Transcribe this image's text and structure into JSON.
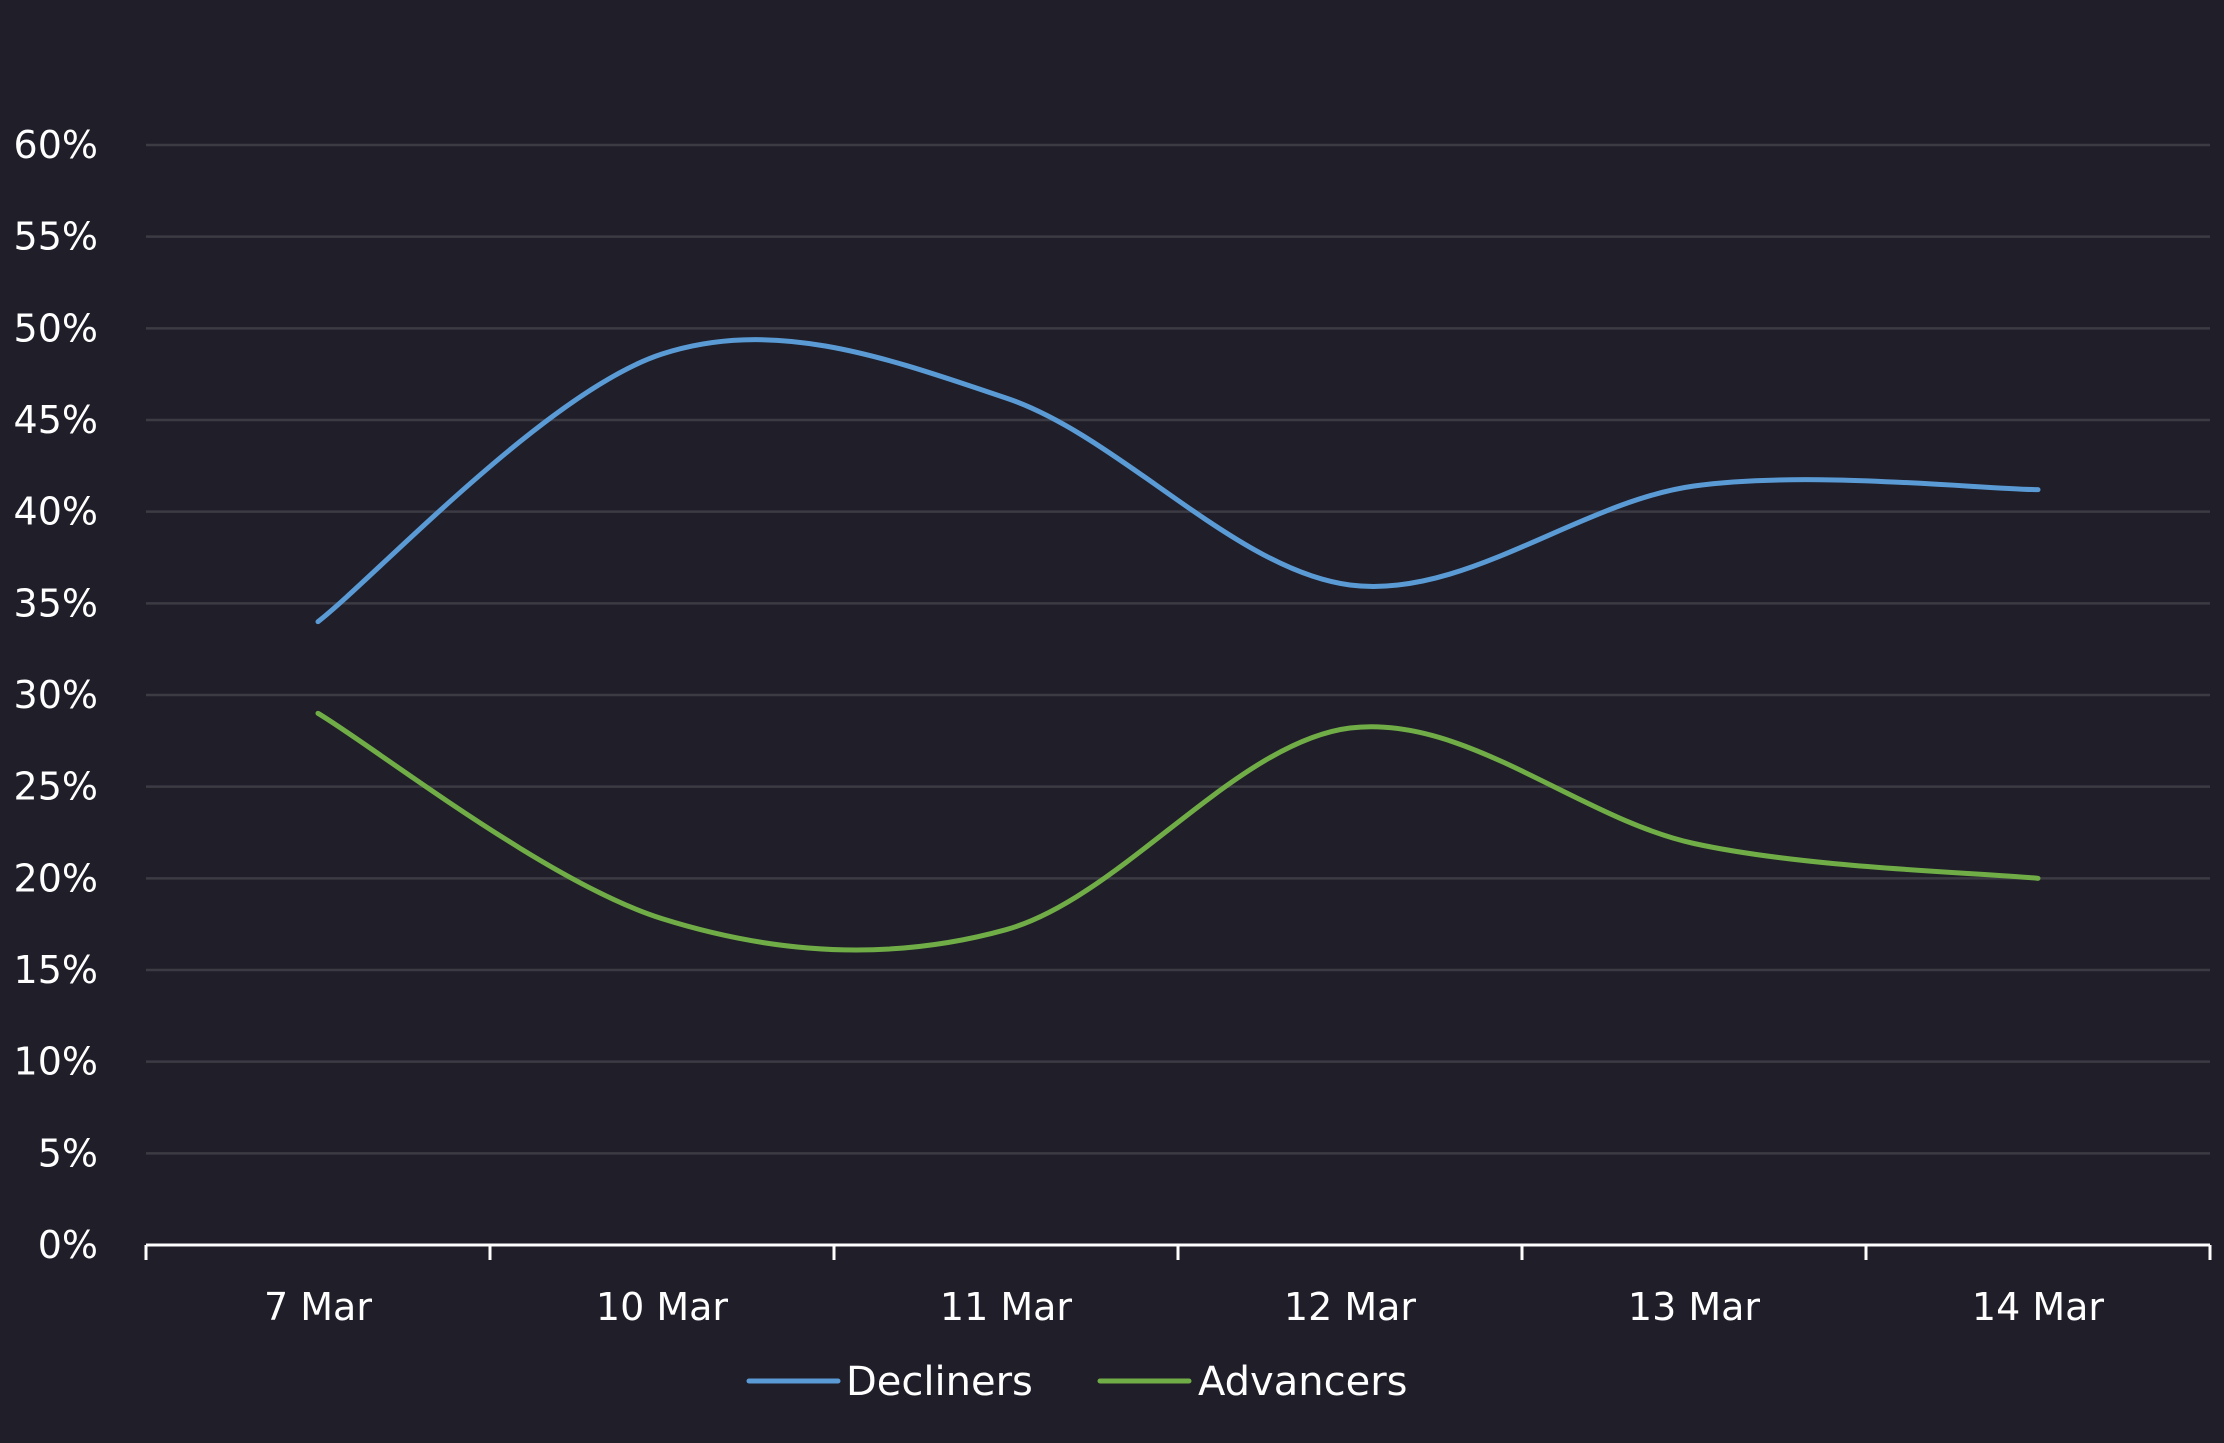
{
  "chart_data": {
    "type": "line",
    "smooth": true,
    "categories": [
      "7 Mar",
      "10 Mar",
      "11 Mar",
      "12 Mar",
      "13 Mar",
      "14 Mar"
    ],
    "series": [
      {
        "name": "Decliners",
        "color": "#5b9bd5",
        "values": [
          34,
          48.6,
          46.2,
          36.0,
          41.4,
          41.2
        ]
      },
      {
        "name": "Advancers",
        "color": "#70ad47",
        "values": [
          29,
          17.8,
          17.2,
          28.2,
          21.9,
          20.0
        ]
      }
    ],
    "ylim": [
      0,
      60
    ],
    "yticks": [
      "0%",
      "5%",
      "10%",
      "15%",
      "20%",
      "25%",
      "30%",
      "35%",
      "40%",
      "45%",
      "50%",
      "55%",
      "60%"
    ],
    "ytick_values": [
      0,
      5,
      10,
      15,
      20,
      25,
      30,
      35,
      40,
      45,
      50,
      55,
      60
    ],
    "grid": true,
    "legend_position": "bottom-center",
    "background": "#1f1e29",
    "gridline_color": "#3c3b44",
    "axis_color": "#ffffff"
  }
}
